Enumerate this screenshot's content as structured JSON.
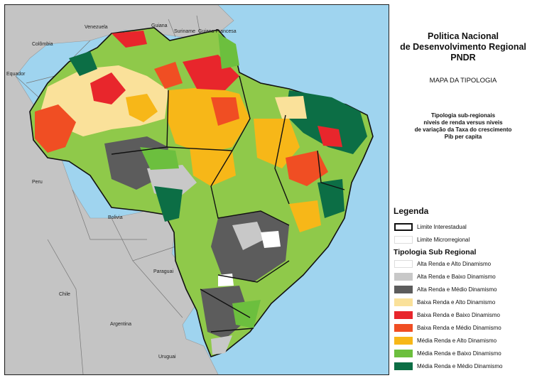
{
  "title": {
    "line1": "Politica Nacional",
    "line2": "de Desenvolvimento Regional",
    "line3": "PNDR"
  },
  "subtitle": "MAPA DA TIPOLOGIA",
  "description": {
    "line1": "Tipologia sub-regionais",
    "line2": "niveis de renda versus niveis",
    "line3": "de variação da Taxa do crescimento",
    "line4": "Pib per capita"
  },
  "map": {
    "country_labels": [
      "Venezuela",
      "Guiana",
      "Suriname",
      "Guiana Francesa",
      "Colômbia",
      "Equador",
      "Peru",
      "Bolivia",
      "Paraguai",
      "Chile",
      "Argentina",
      "Uruguai"
    ],
    "colors": {
      "ocean": "#9fd4ef",
      "neighbors": "#c4c4c4",
      "brazil_base": "#8fc94a"
    }
  },
  "legend": {
    "heading": "Legenda",
    "boundaries": [
      {
        "label": "Limite Interestadual",
        "style": "thick-black-outline"
      },
      {
        "label": "Limite Microrregional",
        "style": "thin-white-outline"
      }
    ],
    "typology_heading": "Tipologia Sub Regional",
    "typology": [
      {
        "label": "Alta Renda e Alto Dinamismo",
        "color": "#ffffff"
      },
      {
        "label": "Alta Renda e Baixo Dinamismo",
        "color": "#c8c8c8"
      },
      {
        "label": "Alta Renda e Médio Dinamismo",
        "color": "#5c5c5c"
      },
      {
        "label": "Baixa Renda e Alto Dinamismo",
        "color": "#fae19a"
      },
      {
        "label": "Baixa Renda e Baixo Dinamismo",
        "color": "#e8262c"
      },
      {
        "label": "Baixa Renda e Médio Dinamismo",
        "color": "#f04e23"
      },
      {
        "label": "Média Renda e Alto Dinamismo",
        "color": "#f7b718"
      },
      {
        "label": "Média Renda e Baixo Dinamismo",
        "color": "#6cbf3e"
      },
      {
        "label": "Média Renda e Médio Dinamismo",
        "color": "#0c6e45"
      }
    ]
  }
}
